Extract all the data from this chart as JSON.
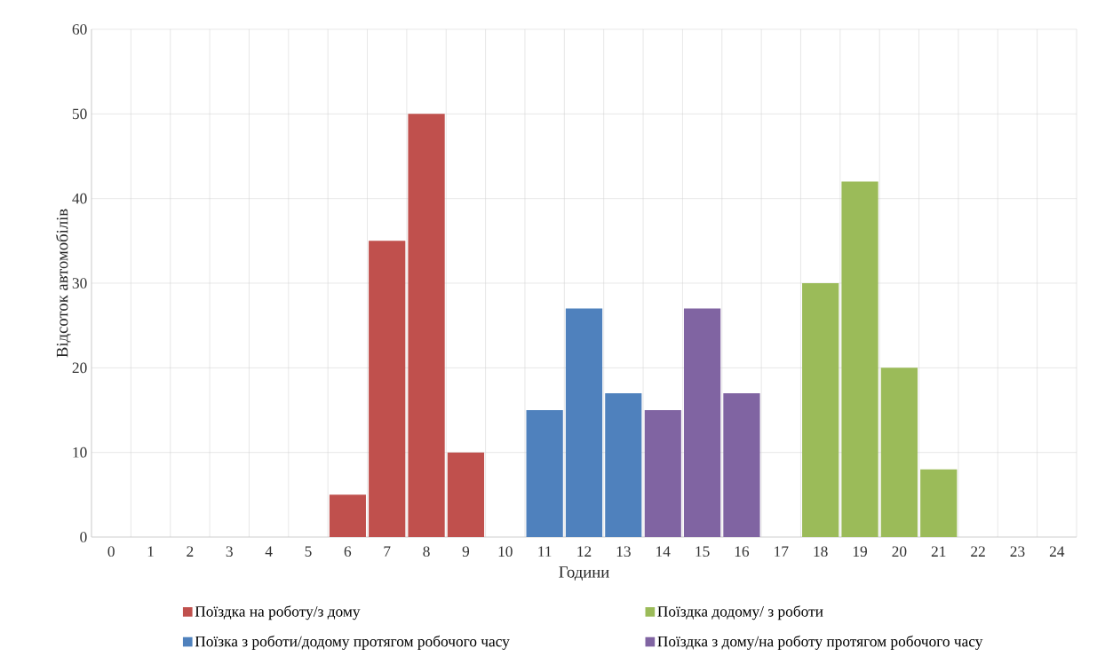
{
  "chart_data": {
    "type": "bar",
    "xlabel": "Години",
    "ylabel": "Відсоток автомобілів",
    "categories": [
      "0",
      "1",
      "2",
      "3",
      "4",
      "5",
      "6",
      "7",
      "8",
      "9",
      "10",
      "11",
      "12",
      "13",
      "14",
      "15",
      "16",
      "17",
      "18",
      "19",
      "20",
      "21",
      "22",
      "23",
      "24"
    ],
    "series": [
      {
        "name": "Поїздка на роботу/з дому",
        "color": "#c0504d",
        "values": [
          null,
          null,
          null,
          null,
          null,
          null,
          5,
          35,
          50,
          10,
          null,
          null,
          null,
          null,
          null,
          null,
          null,
          null,
          null,
          null,
          null,
          null,
          null,
          null,
          null
        ]
      },
      {
        "name": "Поїздка додому/ з роботи",
        "color": "#9bbb59",
        "values": [
          null,
          null,
          null,
          null,
          null,
          null,
          null,
          null,
          null,
          null,
          null,
          null,
          null,
          null,
          null,
          null,
          null,
          null,
          30,
          42,
          20,
          8,
          null,
          null,
          null
        ]
      },
      {
        "name": "Поїзка з роботи/додому  протягом робочого часу",
        "color": "#4f81bd",
        "values": [
          null,
          null,
          null,
          null,
          null,
          null,
          null,
          null,
          null,
          null,
          null,
          15,
          27,
          17,
          null,
          null,
          null,
          null,
          null,
          null,
          null,
          null,
          null,
          null,
          null
        ]
      },
      {
        "name": "Поїздка з дому/на роботу протягом робочого часу",
        "color": "#8064a2",
        "values": [
          null,
          null,
          null,
          null,
          null,
          null,
          null,
          null,
          null,
          null,
          null,
          null,
          null,
          null,
          15,
          27,
          17,
          null,
          null,
          null,
          null,
          null,
          null,
          null,
          null
        ]
      }
    ],
    "ylim": [
      0,
      60
    ],
    "yticks": [
      0,
      10,
      20,
      30,
      40,
      50,
      60
    ],
    "grid": true,
    "legend": "bottom"
  }
}
